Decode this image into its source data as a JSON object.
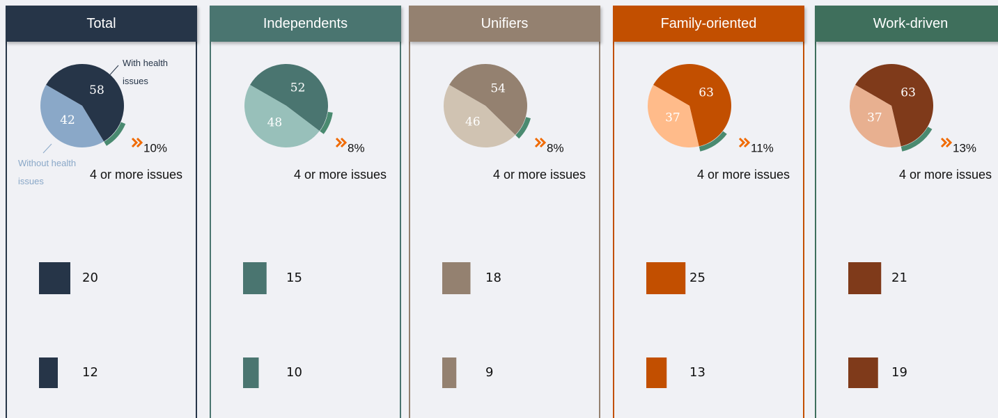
{
  "panels": [
    {
      "title": "Total",
      "pie": [
        58,
        42
      ],
      "pie_labels": [
        "With health issues",
        "Without health issues"
      ],
      "highlight": {
        "value": 10,
        "label": "10%"
      },
      "caption": "4 or more issues",
      "bars": [
        20,
        12
      ],
      "colors": {
        "header": "#263548",
        "dark": "#263548",
        "light": "#8aa8c8"
      }
    },
    {
      "title": "Independents",
      "pie": [
        52,
        48
      ],
      "highlight": {
        "value": 8,
        "label": "8%"
      },
      "caption": "4 or more issues",
      "bars": [
        15,
        10
      ],
      "colors": {
        "header": "#4a7570",
        "dark": "#4a7570",
        "light": "#98c0ba"
      }
    },
    {
      "title": "Unifiers",
      "pie": [
        54,
        46
      ],
      "highlight": {
        "value": 8,
        "label": "8%"
      },
      "caption": "4 or more issues",
      "bars": [
        18,
        9
      ],
      "colors": {
        "header": "#948170",
        "dark": "#948170",
        "light": "#d0c3b2"
      }
    },
    {
      "title": "Family-oriented",
      "pie": [
        63,
        37
      ],
      "highlight": {
        "value": 11,
        "label": "11%"
      },
      "caption": "4 or more issues",
      "bars": [
        25,
        13
      ],
      "colors": {
        "header": "#c24f00",
        "dark": "#c24f00",
        "light": "#ffbb8a"
      }
    },
    {
      "title": "Work-driven",
      "pie": [
        63,
        37
      ],
      "highlight": {
        "value": 13,
        "label": "13%"
      },
      "caption": "4 or more issues",
      "bars": [
        21,
        19
      ],
      "colors": {
        "header": "#3f6f5c",
        "dark": "#7f3a1a",
        "light": "#e8b090"
      }
    }
  ],
  "arc_color": "#4a8a70",
  "chevron_color": "#f06a00"
}
